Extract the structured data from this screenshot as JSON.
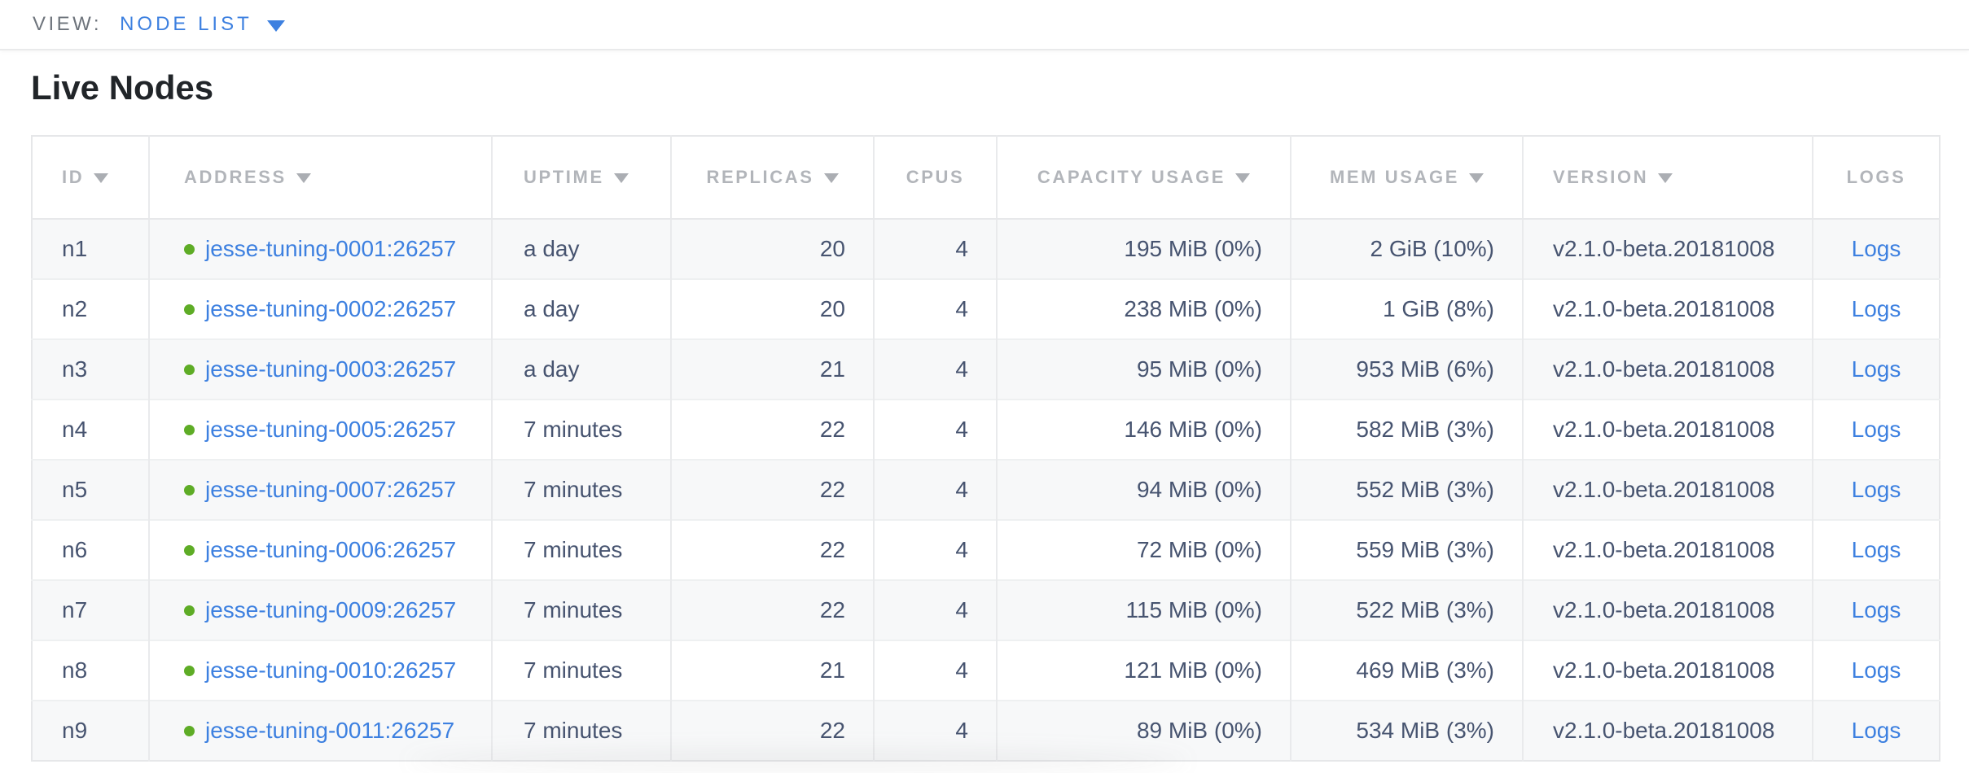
{
  "view_bar": {
    "label": "VIEW:",
    "selected_view": "NODE LIST"
  },
  "page_title": "Live Nodes",
  "table": {
    "logs_label": "Logs",
    "columns": [
      {
        "label": "ID",
        "sortable": true
      },
      {
        "label": "ADDRESS",
        "sortable": true
      },
      {
        "label": "UPTIME",
        "sortable": true
      },
      {
        "label": "REPLICAS",
        "sortable": true
      },
      {
        "label": "CPUS",
        "sortable": false
      },
      {
        "label": "CAPACITY USAGE",
        "sortable": true
      },
      {
        "label": "MEM USAGE",
        "sortable": true
      },
      {
        "label": "VERSION",
        "sortable": true
      },
      {
        "label": "LOGS",
        "sortable": false
      }
    ],
    "rows": [
      {
        "id": "n1",
        "status_icon": "live-green-dot",
        "address": "jesse-tuning-0001:26257",
        "uptime": "a day",
        "replicas": "20",
        "cpus": "4",
        "capacity_usage": "195 MiB (0%)",
        "mem_usage": "2 GiB (10%)",
        "version": "v2.1.0-beta.20181008"
      },
      {
        "id": "n2",
        "status_icon": "live-green-dot",
        "address": "jesse-tuning-0002:26257",
        "uptime": "a day",
        "replicas": "20",
        "cpus": "4",
        "capacity_usage": "238 MiB (0%)",
        "mem_usage": "1 GiB (8%)",
        "version": "v2.1.0-beta.20181008"
      },
      {
        "id": "n3",
        "status_icon": "live-green-dot",
        "address": "jesse-tuning-0003:26257",
        "uptime": "a day",
        "replicas": "21",
        "cpus": "4",
        "capacity_usage": "95 MiB (0%)",
        "mem_usage": "953 MiB (6%)",
        "version": "v2.1.0-beta.20181008"
      },
      {
        "id": "n4",
        "status_icon": "live-green-dot",
        "address": "jesse-tuning-0005:26257",
        "uptime": "7 minutes",
        "replicas": "22",
        "cpus": "4",
        "capacity_usage": "146 MiB (0%)",
        "mem_usage": "582 MiB (3%)",
        "version": "v2.1.0-beta.20181008"
      },
      {
        "id": "n5",
        "status_icon": "live-green-dot",
        "address": "jesse-tuning-0007:26257",
        "uptime": "7 minutes",
        "replicas": "22",
        "cpus": "4",
        "capacity_usage": "94 MiB (0%)",
        "mem_usage": "552 MiB (3%)",
        "version": "v2.1.0-beta.20181008"
      },
      {
        "id": "n6",
        "status_icon": "live-green-dot",
        "address": "jesse-tuning-0006:26257",
        "uptime": "7 minutes",
        "replicas": "22",
        "cpus": "4",
        "capacity_usage": "72 MiB (0%)",
        "mem_usage": "559 MiB (3%)",
        "version": "v2.1.0-beta.20181008"
      },
      {
        "id": "n7",
        "status_icon": "live-green-dot",
        "address": "jesse-tuning-0009:26257",
        "uptime": "7 minutes",
        "replicas": "22",
        "cpus": "4",
        "capacity_usage": "115 MiB (0%)",
        "mem_usage": "522 MiB (3%)",
        "version": "v2.1.0-beta.20181008"
      },
      {
        "id": "n8",
        "status_icon": "live-green-dot",
        "address": "jesse-tuning-0010:26257",
        "uptime": "7 minutes",
        "replicas": "21",
        "cpus": "4",
        "capacity_usage": "121 MiB (0%)",
        "mem_usage": "469 MiB (3%)",
        "version": "v2.1.0-beta.20181008"
      },
      {
        "id": "n9",
        "status_icon": "live-green-dot",
        "address": "jesse-tuning-0011:26257",
        "uptime": "7 minutes",
        "replicas": "22",
        "cpus": "4",
        "capacity_usage": "89 MiB (0%)",
        "mem_usage": "534 MiB (3%)",
        "version": "v2.1.0-beta.20181008"
      }
    ]
  },
  "colors": {
    "link_blue": "#3d80e0",
    "status_green": "#5eac26",
    "header_gray": "#b2b5ba",
    "cell_text": "#475470",
    "alt_row_bg": "#f7f8f9"
  }
}
